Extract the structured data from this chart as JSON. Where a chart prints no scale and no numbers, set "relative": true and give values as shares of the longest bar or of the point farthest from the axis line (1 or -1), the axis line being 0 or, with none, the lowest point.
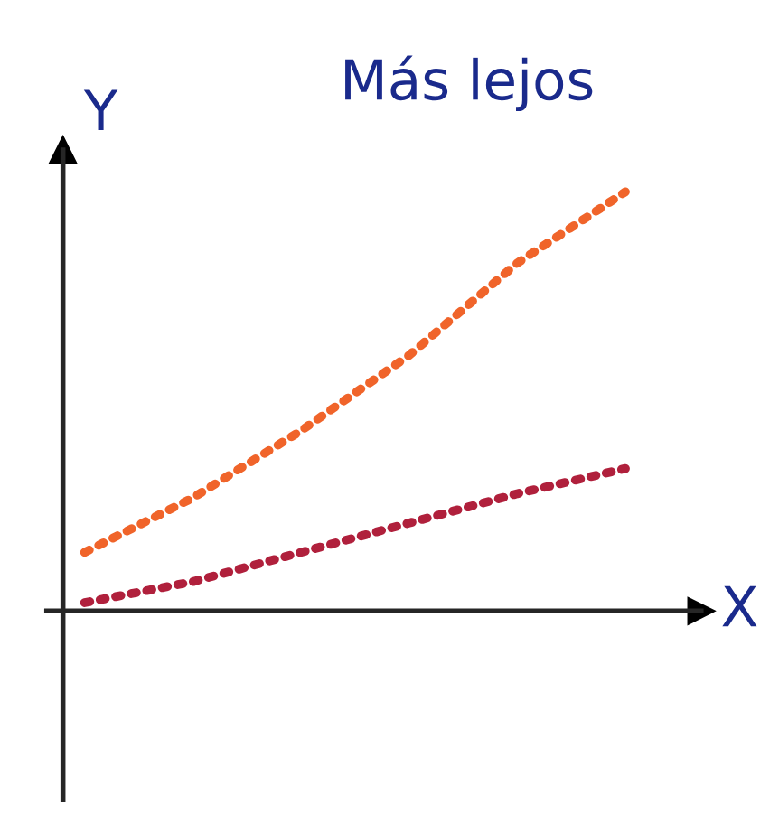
{
  "chart_data": {
    "type": "line",
    "title": "Más lejos",
    "xlabel": "X",
    "ylabel": "Y",
    "relative": true,
    "categories": [
      null,
      null,
      null,
      null,
      null,
      null
    ],
    "series": [
      {
        "color": "#f0642a",
        "values": [
          0.14,
          0.27,
          0.43,
          0.61,
          0.83,
          1
        ]
      },
      {
        "color": "#b0203c",
        "values": [
          0.02,
          0.07,
          0.14,
          0.21,
          0.28,
          0.34
        ]
      }
    ],
    "line_style": "dotted",
    "marker": "none",
    "grid": false,
    "legend": false
  }
}
